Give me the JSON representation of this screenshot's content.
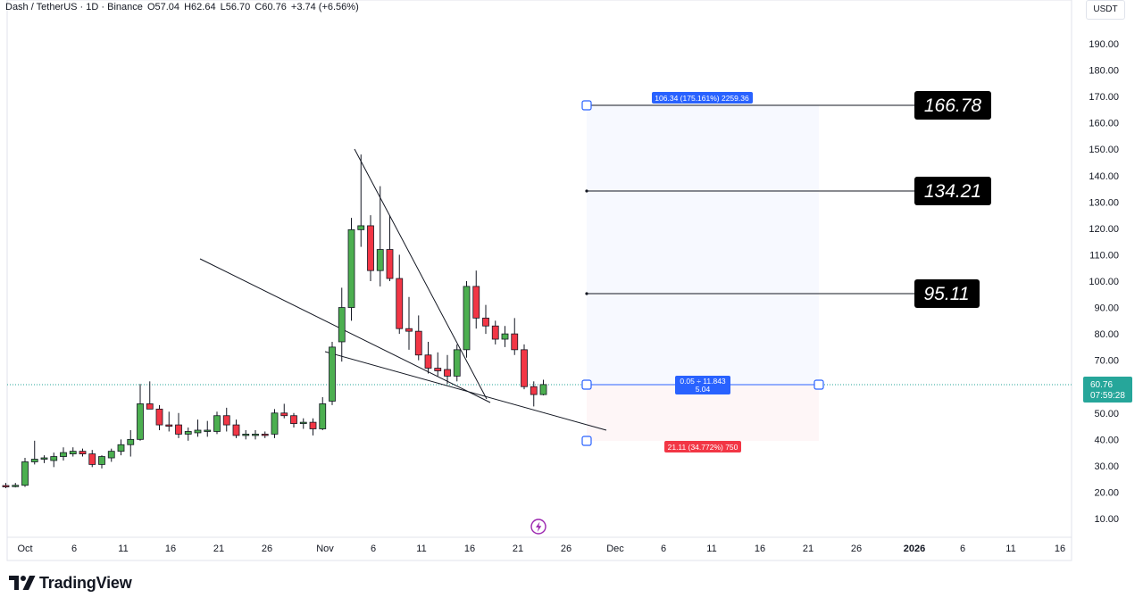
{
  "header": {
    "symbol": "Dash / TetherUS · 1D · Binance",
    "open": "O57.04",
    "high": "H62.64",
    "low": "L56.70",
    "close": "C60.76",
    "change": "+3.74 (+6.56%)"
  },
  "currency_label": "USDT",
  "price_tag": {
    "price": "60.76",
    "countdown": "07:59:28",
    "color": "#26a69a"
  },
  "brand": "TradingView",
  "colors": {
    "up": "#4caf50",
    "down": "#f23645",
    "measure_blue": "#2962ff",
    "measure_red": "#f23645"
  },
  "measure": {
    "top_label": "106.34 (175.161%) 2259.36",
    "mid_label_1": "0.05 ÷ 11.843",
    "mid_label_2": "5.04",
    "bottom_label": "21.11 (34.772%) 750"
  },
  "chart_data": {
    "type": "candlestick",
    "x_ticks": [
      "Oct",
      "6",
      "11",
      "16",
      "21",
      "26",
      "Nov",
      "6",
      "11",
      "16",
      "21",
      "26",
      "Dec",
      "6",
      "11",
      "16",
      "21",
      "26",
      "2026",
      "6",
      "11",
      "16"
    ],
    "y_ticks": [
      "10.00",
      "20.00",
      "30.00",
      "40.00",
      "50.00",
      "60.00",
      "70.00",
      "80.00",
      "90.00",
      "100.00",
      "110.00",
      "120.00",
      "130.00",
      "140.00",
      "150.00",
      "160.00",
      "170.00",
      "180.00",
      "190.00"
    ],
    "ylim": [
      1,
      205
    ],
    "candles": [
      {
        "date": "2025-09-29",
        "o": 22.5,
        "h": 23.5,
        "l": 21.5,
        "c": 22.0
      },
      {
        "date": "2025-09-30",
        "o": 22.2,
        "h": 23.5,
        "l": 21.8,
        "c": 22.6
      },
      {
        "date": "2025-10-01",
        "o": 22.6,
        "h": 33.0,
        "l": 22.0,
        "c": 31.5
      },
      {
        "date": "2025-10-02",
        "o": 31.5,
        "h": 39.5,
        "l": 30.5,
        "c": 32.5
      },
      {
        "date": "2025-10-03",
        "o": 32.5,
        "h": 34.0,
        "l": 31.0,
        "c": 33.0
      },
      {
        "date": "2025-10-04",
        "o": 32.0,
        "h": 35.0,
        "l": 29.5,
        "c": 33.5
      },
      {
        "date": "2025-10-05",
        "o": 33.5,
        "h": 37.0,
        "l": 32.0,
        "c": 35.0
      },
      {
        "date": "2025-10-06",
        "o": 34.5,
        "h": 37.0,
        "l": 33.5,
        "c": 35.5
      },
      {
        "date": "2025-10-07",
        "o": 35.5,
        "h": 36.5,
        "l": 33.5,
        "c": 34.5
      },
      {
        "date": "2025-10-08",
        "o": 34.5,
        "h": 36.0,
        "l": 29.5,
        "c": 30.5
      },
      {
        "date": "2025-10-09",
        "o": 30.5,
        "h": 34.0,
        "l": 29.0,
        "c": 33.5
      },
      {
        "date": "2025-10-10",
        "o": 33.0,
        "h": 36.5,
        "l": 31.5,
        "c": 35.5
      },
      {
        "date": "2025-10-11",
        "o": 35.5,
        "h": 40.0,
        "l": 34.0,
        "c": 38.0
      },
      {
        "date": "2025-10-12",
        "o": 38.0,
        "h": 43.5,
        "l": 33.5,
        "c": 40.0
      },
      {
        "date": "2025-10-13",
        "o": 40.0,
        "h": 61.0,
        "l": 39.5,
        "c": 53.5
      },
      {
        "date": "2025-10-14",
        "o": 53.5,
        "h": 62.0,
        "l": 51.5,
        "c": 51.5
      },
      {
        "date": "2025-10-15",
        "o": 51.5,
        "h": 53.0,
        "l": 43.5,
        "c": 45.5
      },
      {
        "date": "2025-10-16",
        "o": 45.5,
        "h": 50.5,
        "l": 43.0,
        "c": 45.0
      },
      {
        "date": "2025-10-17",
        "o": 45.5,
        "h": 50.0,
        "l": 40.5,
        "c": 42.0
      },
      {
        "date": "2025-10-18",
        "o": 42.0,
        "h": 44.5,
        "l": 39.5,
        "c": 43.0
      },
      {
        "date": "2025-10-19",
        "o": 42.5,
        "h": 47.5,
        "l": 41.0,
        "c": 43.5
      },
      {
        "date": "2025-10-20",
        "o": 43.0,
        "h": 47.0,
        "l": 41.0,
        "c": 43.5
      },
      {
        "date": "2025-10-21",
        "o": 43.0,
        "h": 50.5,
        "l": 42.0,
        "c": 49.0
      },
      {
        "date": "2025-10-22",
        "o": 49.0,
        "h": 52.0,
        "l": 43.0,
        "c": 45.5
      },
      {
        "date": "2025-10-23",
        "o": 45.5,
        "h": 47.5,
        "l": 40.5,
        "c": 41.5
      },
      {
        "date": "2025-10-24",
        "o": 41.5,
        "h": 43.5,
        "l": 40.0,
        "c": 42.0
      },
      {
        "date": "2025-10-25",
        "o": 41.5,
        "h": 43.5,
        "l": 40.0,
        "c": 42.0
      },
      {
        "date": "2025-10-26",
        "o": 42.0,
        "h": 43.0,
        "l": 40.5,
        "c": 41.5
      },
      {
        "date": "2025-10-27",
        "o": 42.0,
        "h": 51.5,
        "l": 40.5,
        "c": 50.0
      },
      {
        "date": "2025-10-28",
        "o": 50.0,
        "h": 53.5,
        "l": 48.0,
        "c": 49.0
      },
      {
        "date": "2025-10-29",
        "o": 49.0,
        "h": 50.0,
        "l": 44.5,
        "c": 46.0
      },
      {
        "date": "2025-10-30",
        "o": 46.0,
        "h": 48.0,
        "l": 44.0,
        "c": 46.5
      },
      {
        "date": "2025-10-31",
        "o": 46.5,
        "h": 48.0,
        "l": 41.5,
        "c": 44.0
      },
      {
        "date": "2025-11-01",
        "o": 44.0,
        "h": 56.0,
        "l": 43.5,
        "c": 53.5
      },
      {
        "date": "2025-11-02",
        "o": 54.5,
        "h": 77.0,
        "l": 53.0,
        "c": 75.0
      },
      {
        "date": "2025-11-03",
        "o": 77.0,
        "h": 97.5,
        "l": 69.5,
        "c": 90.0
      },
      {
        "date": "2025-11-04",
        "o": 90.0,
        "h": 124.0,
        "l": 85.0,
        "c": 119.5
      },
      {
        "date": "2025-11-05",
        "o": 119.5,
        "h": 148.0,
        "l": 113.0,
        "c": 121.0
      },
      {
        "date": "2025-11-06",
        "o": 121.0,
        "h": 125.0,
        "l": 100.0,
        "c": 104.0
      },
      {
        "date": "2025-11-07",
        "o": 104.0,
        "h": 136.0,
        "l": 98.0,
        "c": 112.0
      },
      {
        "date": "2025-11-08",
        "o": 112.0,
        "h": 125.0,
        "l": 100.0,
        "c": 101.0
      },
      {
        "date": "2025-11-09",
        "o": 101.0,
        "h": 110.0,
        "l": 80.0,
        "c": 82.0
      },
      {
        "date": "2025-11-10",
        "o": 82.0,
        "h": 94.0,
        "l": 74.0,
        "c": 81.0
      },
      {
        "date": "2025-11-11",
        "o": 81.0,
        "h": 87.0,
        "l": 70.0,
        "c": 72.0
      },
      {
        "date": "2025-11-12",
        "o": 72.0,
        "h": 77.0,
        "l": 65.0,
        "c": 67.0
      },
      {
        "date": "2025-11-13",
        "o": 67.0,
        "h": 73.0,
        "l": 64.0,
        "c": 66.0
      },
      {
        "date": "2025-11-14",
        "o": 66.5,
        "h": 72.0,
        "l": 61.0,
        "c": 64.0
      },
      {
        "date": "2025-11-15",
        "o": 64.0,
        "h": 76.0,
        "l": 62.0,
        "c": 74.0
      },
      {
        "date": "2025-11-16",
        "o": 74.0,
        "h": 100.0,
        "l": 71.0,
        "c": 98.0
      },
      {
        "date": "2025-11-17",
        "o": 98.0,
        "h": 104.0,
        "l": 82.0,
        "c": 86.0
      },
      {
        "date": "2025-11-18",
        "o": 86.0,
        "h": 91.0,
        "l": 80.0,
        "c": 83.0
      },
      {
        "date": "2025-11-19",
        "o": 83.0,
        "h": 85.0,
        "l": 76.0,
        "c": 78.0
      },
      {
        "date": "2025-11-20",
        "o": 78.0,
        "h": 83.0,
        "l": 75.0,
        "c": 80.0
      },
      {
        "date": "2025-11-21",
        "o": 80.0,
        "h": 86.0,
        "l": 72.0,
        "c": 74.0
      },
      {
        "date": "2025-11-22",
        "o": 74.0,
        "h": 76.0,
        "l": 59.0,
        "c": 60.0
      },
      {
        "date": "2025-11-23",
        "o": 60.0,
        "h": 62.0,
        "l": 52.5,
        "c": 57.0
      },
      {
        "date": "2025-11-24",
        "o": 57.0,
        "h": 62.6,
        "l": 56.7,
        "c": 60.8
      }
    ]
  }
}
